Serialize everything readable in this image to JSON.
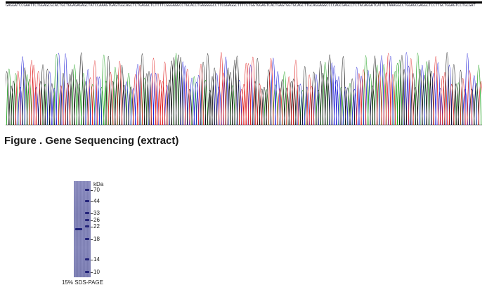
{
  "figure": {
    "caption": "Figure . Gene Sequencing (extract)",
    "base_sequence": "GAGGATCCGAATTCTGGAGCGCACTGCTGGAGAGAGCTATCCAAAGTGAGTGGCAGCTCTGAGGCTCTTTTCGGGAGGCCTGCACCTGAGGGGCCTTCGGAGGCTTTTCTGGTGGAGTCACTGAGTGGTGCAGCTTGCAGGAGGCCCCAGCGAGCCTCTACAGGATCATTCTAAAGGCCTGGAGCGAGGCTCCTTGCTGGAGTCCTGCGAT",
    "trace_colors": {
      "A": "#1ca01c",
      "C": "#1f1fd6",
      "G": "#111111",
      "T": "#e02020"
    }
  },
  "gel": {
    "unit_label": "kDa",
    "markers": [
      "70",
      "44",
      "33",
      "26",
      "22",
      "18",
      "14",
      "10"
    ],
    "caption": "15% SDS-PAGE"
  }
}
